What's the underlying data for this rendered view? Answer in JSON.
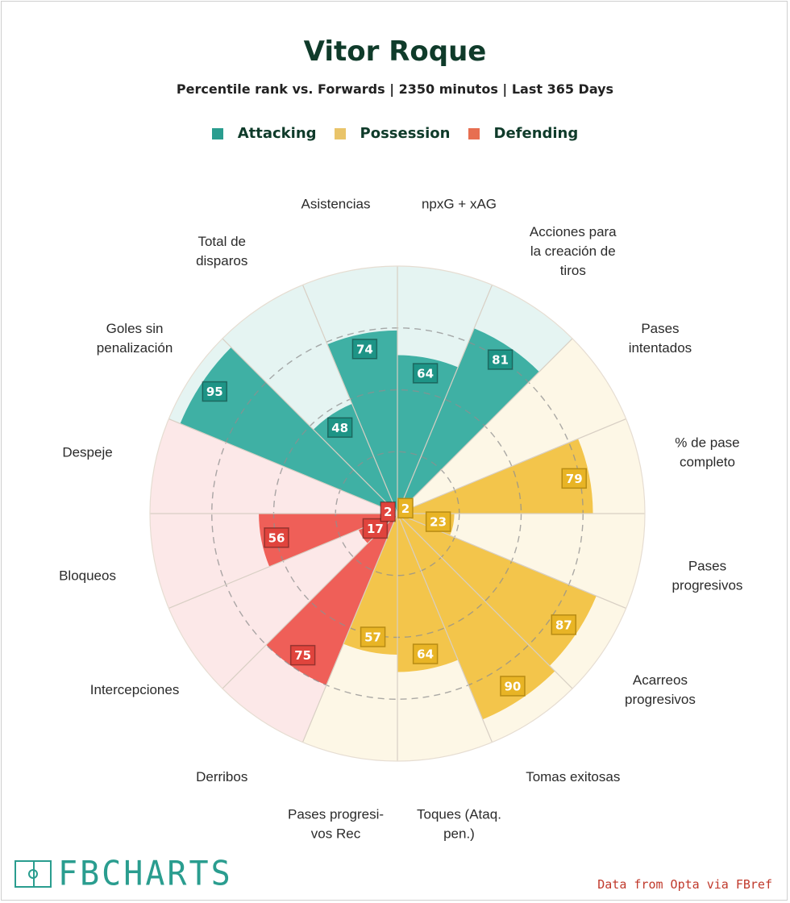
{
  "title": "Vitor Roque",
  "subtitle": "Percentile rank vs. Forwards | 2350 minutos | Last 365 Days",
  "legend": [
    {
      "label": "Attacking",
      "color": "#2a9d8f"
    },
    {
      "label": "Possession",
      "color": "#e9c46a"
    },
    {
      "label": "Defending",
      "color": "#e76f51"
    }
  ],
  "colors": {
    "Attacking": {
      "bar": "#3fb0a4",
      "bg": "#e5f4f2",
      "box": "#1e9486"
    },
    "Possession": {
      "bar": "#f3c54b",
      "bg": "#fdf7e6",
      "box": "#e8b425"
    },
    "Defending": {
      "bar": "#ef5f58",
      "bg": "#fce8e8",
      "box": "#e0443d"
    }
  },
  "chart_data": {
    "type": "radar-bar",
    "range": [
      0,
      100
    ],
    "gridlines": [
      25,
      50,
      75
    ],
    "metrics": [
      {
        "label": [
          "npxG + xAG"
        ],
        "value": 64,
        "category": "Attacking"
      },
      {
        "label": [
          "Acciones para",
          "la creación de",
          "tiros"
        ],
        "value": 81,
        "category": "Attacking"
      },
      {
        "label": [
          "Pases",
          "intentados"
        ],
        "value": 2,
        "category": "Possession"
      },
      {
        "label": [
          "% de pase",
          "completo"
        ],
        "value": 79,
        "category": "Possession"
      },
      {
        "label": [
          "Pases",
          "progresivos"
        ],
        "value": 23,
        "category": "Possession"
      },
      {
        "label": [
          "Acarreos",
          "progresivos"
        ],
        "value": 87,
        "category": "Possession"
      },
      {
        "label": [
          "Tomas exitosas"
        ],
        "value": 90,
        "category": "Possession"
      },
      {
        "label": [
          "Toques (Ataq.",
          "pen.)"
        ],
        "value": 64,
        "category": "Possession"
      },
      {
        "label": [
          "Pases progresi-",
          "vos Rec"
        ],
        "value": 57,
        "category": "Possession"
      },
      {
        "label": [
          "Derribos"
        ],
        "value": 75,
        "category": "Defending"
      },
      {
        "label": [
          "Intercepciones"
        ],
        "value": 17,
        "category": "Defending"
      },
      {
        "label": [
          "Bloqueos"
        ],
        "value": 56,
        "category": "Defending"
      },
      {
        "label": [
          "Despeje"
        ],
        "value": 2,
        "category": "Defending"
      },
      {
        "label": [
          "Goles sin",
          "penalización"
        ],
        "value": 95,
        "category": "Attacking"
      },
      {
        "label": [
          "Total de",
          "disparos"
        ],
        "value": 48,
        "category": "Attacking"
      },
      {
        "label": [
          "Asistencias"
        ],
        "value": 74,
        "category": "Attacking"
      }
    ]
  },
  "footer": {
    "logo_text": "FBCHARTS",
    "credit": "Data from Opta via FBref"
  }
}
